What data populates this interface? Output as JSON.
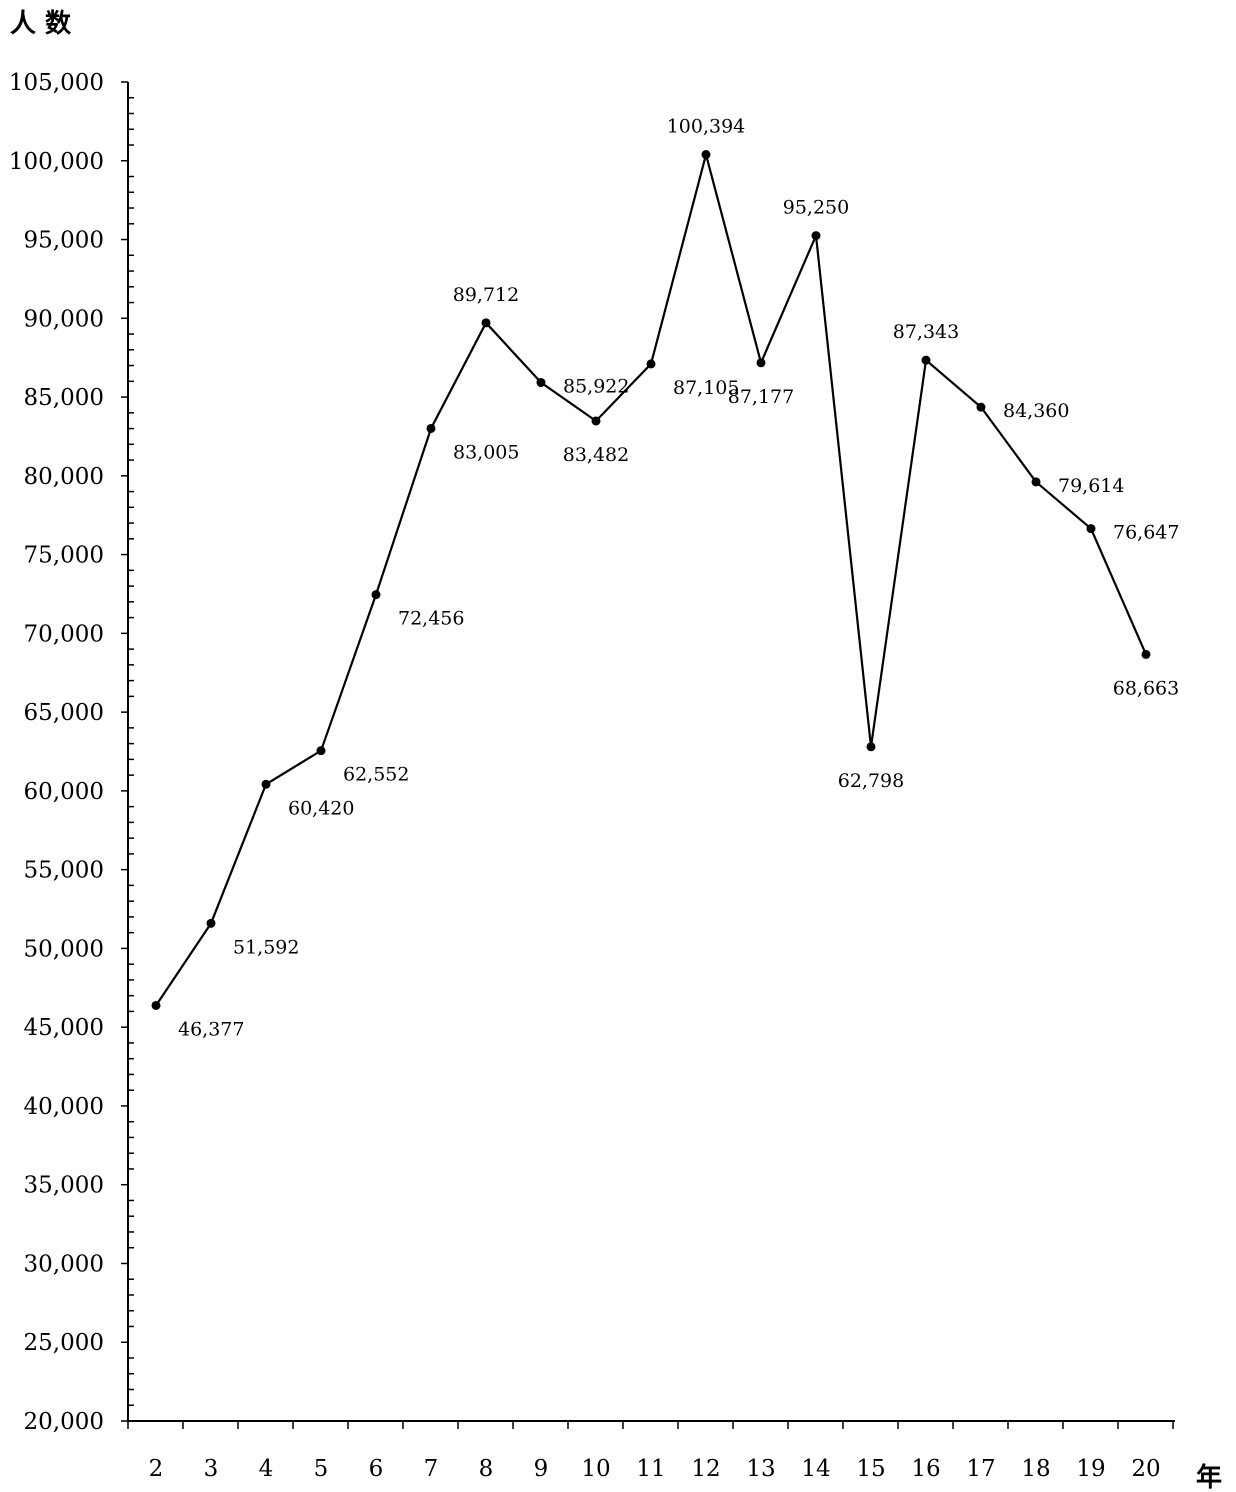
{
  "chart_data": {
    "type": "line",
    "ylabel": "人 数",
    "xlabel": "年",
    "ylim": [
      20000,
      105000
    ],
    "ytick_step": 5000,
    "categories": [
      "2",
      "3",
      "4",
      "5",
      "6",
      "7",
      "8",
      "9",
      "10",
      "11",
      "12",
      "13",
      "14",
      "15",
      "16",
      "17",
      "18",
      "19",
      "20"
    ],
    "values": [
      46377,
      51592,
      60420,
      62552,
      72456,
      83005,
      89712,
      85922,
      83482,
      87105,
      100394,
      87177,
      95250,
      62798,
      87343,
      84360,
      79614,
      76647,
      68663
    ],
    "value_labels": [
      "46,377",
      "51,592",
      "60,420",
      "62,552",
      "72,456",
      "83,005",
      "89,712",
      "85,922",
      "83,482",
      "87,105",
      "100,394",
      "87,177",
      "95,250",
      "62,798",
      "87,343",
      "84,360",
      "79,614",
      "76,647",
      "68,663"
    ],
    "ytick_labels": [
      "20,000",
      "25,000",
      "30,000",
      "35,000",
      "40,000",
      "45,000",
      "50,000",
      "55,000",
      "60,000",
      "65,000",
      "70,000",
      "75,000",
      "80,000",
      "85,000",
      "90,000",
      "95,000",
      "100,000",
      "105,000"
    ],
    "grid": false,
    "legend": "none",
    "line_color": "#000000"
  }
}
